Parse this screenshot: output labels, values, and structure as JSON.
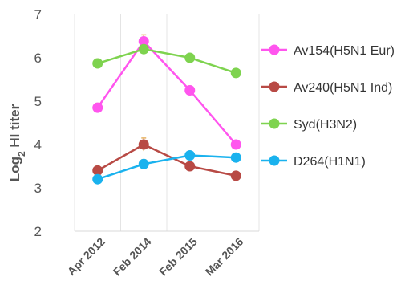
{
  "chart_data": {
    "type": "line",
    "categories": [
      "Apr 2012",
      "Feb 2014",
      "Feb 2015",
      "Mar 2016"
    ],
    "ylabel": {
      "prefix": "Log",
      "subscript": "2",
      "suffix": " HI titer"
    },
    "ylim": [
      2,
      7
    ],
    "yticks": [
      "2",
      "3",
      "4",
      "5",
      "6",
      "7"
    ],
    "grid": {
      "x": true,
      "y": false
    },
    "legend_position": "right",
    "series": [
      {
        "name": "Av154(H5N1 Eur)",
        "color": "#ff55ee",
        "values": [
          4.85,
          6.38,
          5.25,
          4.0
        ],
        "errors": [
          0.1,
          0.15,
          0.1,
          0.08
        ]
      },
      {
        "name": "Av240(H5N1 Ind)",
        "color": "#b84a45",
        "values": [
          3.4,
          4.0,
          3.5,
          3.28
        ],
        "errors": [
          0.1,
          0.15,
          0.06,
          0.06
        ]
      },
      {
        "name": "Syd(H3N2)",
        "color": "#7ed34f",
        "values": [
          5.87,
          6.2,
          6.0,
          5.65
        ],
        "errors": [
          0.1,
          0.08,
          0.08,
          0.06
        ]
      },
      {
        "name": "D264(H1N1)",
        "color": "#1ab2ee",
        "values": [
          3.2,
          3.55,
          3.75,
          3.7
        ],
        "errors": [
          0.1,
          0.1,
          0.08,
          0.08
        ]
      }
    ]
  }
}
